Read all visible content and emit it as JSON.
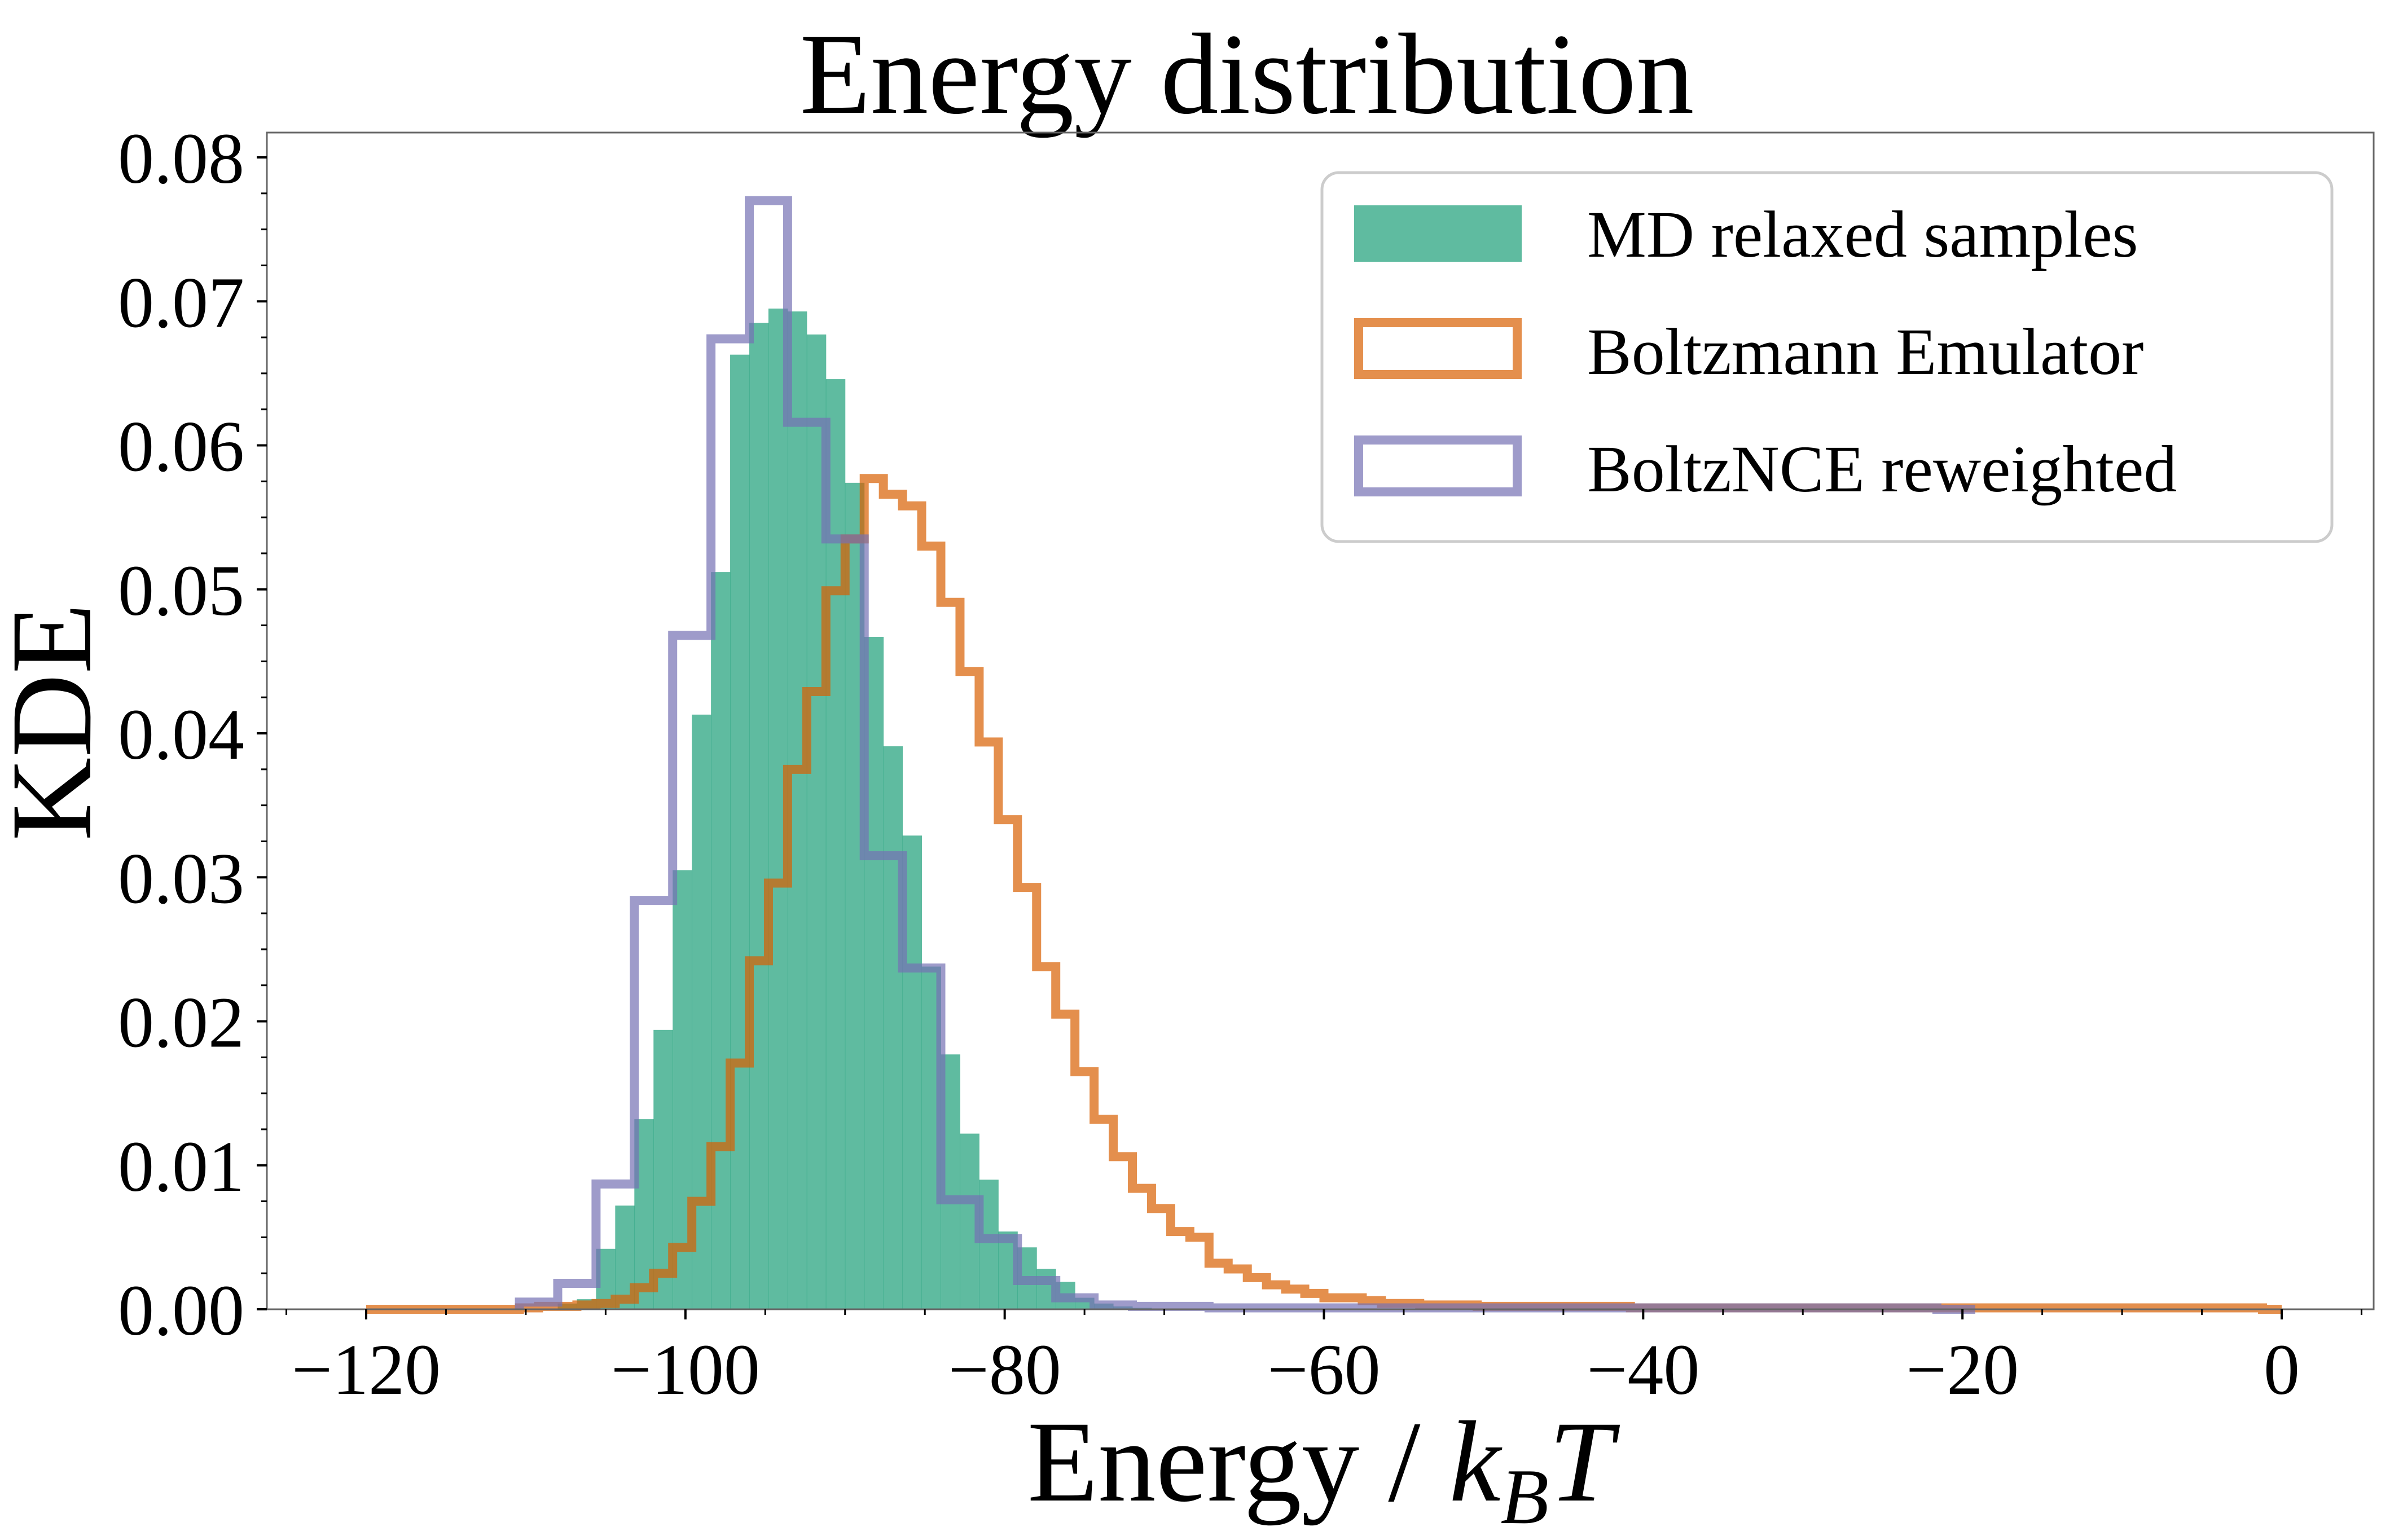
{
  "chart_data": {
    "type": "histogram",
    "title": "Energy distribution",
    "xlabel": {
      "prefix": "Energy / ",
      "k": "k",
      "sub": "B",
      "T": "T"
    },
    "ylabel": "KDE",
    "xlim": [
      -125,
      6
    ],
    "ylim": [
      0,
      0.0817
    ],
    "xticks": [
      -120,
      -100,
      -80,
      -60,
      -40,
      -20,
      0
    ],
    "xtick_labels": [
      "−120",
      "−100",
      "−80",
      "−60",
      "−40",
      "−20",
      "0"
    ],
    "yticks": [
      0,
      0.01,
      0.02,
      0.03,
      0.04,
      0.05,
      0.06,
      0.07,
      0.08
    ],
    "ytick_labels": [
      "0.00",
      "0.01",
      "0.02",
      "0.03",
      "0.04",
      "0.05",
      "0.06",
      "0.07",
      "0.08"
    ],
    "grid": false,
    "legend_position": "top-right",
    "series": [
      {
        "name": "MD relaxed samples",
        "style": "filled",
        "color": "#1b9e77",
        "bin_start": -108.0,
        "bin_width": 1.2,
        "values": [
          0.0004,
          0.0007,
          0.0042,
          0.0072,
          0.0132,
          0.0194,
          0.0305,
          0.0413,
          0.0512,
          0.0663,
          0.0685,
          0.0695,
          0.0693,
          0.0677,
          0.0646,
          0.0574,
          0.0467,
          0.0391,
          0.0329,
          0.0238,
          0.0177,
          0.0122,
          0.009,
          0.0054,
          0.0043,
          0.0028,
          0.0019,
          0.0008,
          0.0004,
          0.0002,
          0.0001
        ]
      },
      {
        "name": "Boltzmann Emulator",
        "style": "step",
        "color": "#d95f02",
        "bin_start": -120.0,
        "bin_width": 1.2,
        "values": [
          0,
          0,
          0,
          0,
          0,
          0,
          0,
          0,
          0.0001,
          0.0002,
          0.0002,
          0.0003,
          0.0004,
          0.0007,
          0.0015,
          0.0025,
          0.0043,
          0.0075,
          0.0113,
          0.0171,
          0.0242,
          0.0296,
          0.0375,
          0.0429,
          0.0499,
          0.0535,
          0.0577,
          0.0566,
          0.0558,
          0.053,
          0.0491,
          0.0443,
          0.0394,
          0.034,
          0.0293,
          0.0238,
          0.0205,
          0.0165,
          0.0132,
          0.0106,
          0.0084,
          0.007,
          0.0054,
          0.005,
          0.0032,
          0.0028,
          0.0022,
          0.0017,
          0.0014,
          0.0011,
          0.0008,
          0.0008,
          0.0006,
          0.0004,
          0.0004,
          0.0003,
          0.0003,
          0.0003,
          0.0002,
          0.0002,
          0.0002,
          0.0002,
          0.0002,
          0.0002,
          0.0002,
          0.0002,
          0.0001,
          0.0001,
          0.0001,
          0.0001,
          0.0001,
          0.0001,
          0.0001,
          0.0001,
          0.0001,
          0.0001,
          0.0001,
          0.0001,
          0.0001,
          0.0001,
          0.0001,
          0.0001,
          0.0001,
          0.0001,
          0.0001,
          0.0001,
          0.0001,
          0.0001,
          0.0001,
          0.0001,
          0.0001,
          0.0001,
          0.0001,
          0.0001,
          0.0001,
          0.0001,
          0.0001,
          0.0001,
          0.0001,
          0
        ]
      },
      {
        "name": "BoltzNCE reweighted",
        "style": "step",
        "color": "#7570b3",
        "bin_start": -110.4,
        "bin_width": 2.4,
        "values": [
          0.0005,
          0.0018,
          0.0087,
          0.0284,
          0.0468,
          0.0674,
          0.077,
          0.0616,
          0.0535,
          0.0315,
          0.0237,
          0.0076,
          0.0049,
          0.002,
          0.0008,
          0.0003,
          0.0002,
          0.0002,
          0.0001,
          0.0001,
          0.0001,
          0.0001,
          0.0001,
          0.0001,
          0.0001,
          0.0001,
          0.0001,
          0.0001,
          0.0001,
          0.0001,
          0.0001,
          0.0001,
          0.0001,
          0.0001,
          0.0001,
          0.0001,
          0.0001,
          0
        ]
      }
    ]
  }
}
